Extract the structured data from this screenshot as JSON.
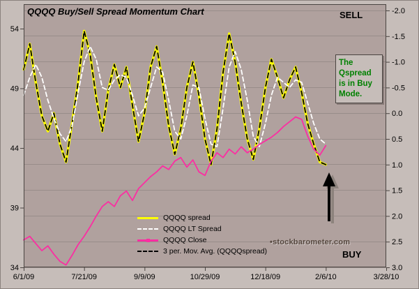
{
  "title": "QQQQ Buy/Sell Spread Momentum Chart",
  "mode_labels": {
    "sell": "SELL",
    "buy": "BUY"
  },
  "annotation": {
    "text": "The Qspread is in Buy Mode.",
    "color": "#008000"
  },
  "watermark": {
    "bullet": "•",
    "text": "stockbarometer.com"
  },
  "colors": {
    "page_bg": "#c6bdb9",
    "plot_bg": "#b0a19e",
    "grid": "#988d8a",
    "axis": "#4a4441",
    "spread": "#ffff00",
    "lt_spread": "#ffffff",
    "close": "#fb2ea2",
    "mov_avg": "#000000",
    "annotation_green": "#008000"
  },
  "chart_data": {
    "type": "line",
    "title": "QQQQ Buy/Sell Spread Momentum Chart",
    "grid": "horizontal",
    "legend_position": "inside-bottom-center",
    "x_axis": {
      "tick_labels": [
        "6/1/09",
        "7/21/09",
        "9/9/09",
        "10/29/09",
        "12/18/09",
        "2/6/10",
        "3/28/10"
      ],
      "tick_days": [
        0,
        50,
        100,
        150,
        200,
        250,
        300
      ],
      "range_days": [
        0,
        300
      ]
    },
    "left_axis": {
      "ticks": [
        54,
        49,
        44,
        39,
        34
      ],
      "range": [
        34,
        54
      ]
    },
    "right_axis": {
      "ticks": [
        -2.0,
        -1.5,
        -1.0,
        -0.5,
        0.0,
        0.5,
        1.0,
        1.5,
        2.0,
        2.5,
        3.0
      ],
      "range": [
        -2.0,
        3.0
      ],
      "inverted": true
    },
    "x_days": [
      0,
      5,
      10,
      15,
      20,
      25,
      30,
      35,
      40,
      45,
      50,
      55,
      60,
      65,
      70,
      75,
      80,
      85,
      90,
      95,
      100,
      105,
      110,
      115,
      120,
      125,
      130,
      135,
      140,
      145,
      150,
      155,
      160,
      165,
      170,
      175,
      180,
      185,
      190,
      195,
      200,
      205,
      210,
      215,
      220,
      225,
      230,
      235,
      240,
      245,
      250
    ],
    "draw_order": [
      0,
      3,
      1,
      2
    ],
    "series": [
      {
        "name": "QQQQ spread",
        "axis": "right",
        "color": "#ffff00",
        "width": 3.5,
        "dash": null,
        "marker": false,
        "values": [
          -0.85,
          -1.35,
          -0.6,
          0.05,
          0.35,
          0.0,
          0.6,
          0.95,
          0.2,
          -0.6,
          -1.6,
          -1.15,
          -0.3,
          0.35,
          -0.45,
          -0.95,
          -0.5,
          -0.9,
          -0.15,
          0.55,
          0.0,
          -0.9,
          -1.3,
          -0.6,
          0.25,
          0.8,
          0.3,
          -0.5,
          -1.0,
          -0.35,
          0.5,
          1.0,
          0.3,
          -0.8,
          -1.55,
          -1.0,
          -0.2,
          0.5,
          0.9,
          0.3,
          -0.5,
          -1.05,
          -0.7,
          -0.3,
          -0.65,
          -0.9,
          -0.4,
          0.2,
          0.6,
          0.95,
          1.0
        ]
      },
      {
        "name": "QQQQ LT Spread",
        "axis": "right",
        "color": "#ffffff",
        "width": 1.8,
        "dash": "6,4",
        "marker": false,
        "values": [
          -0.35,
          -0.7,
          -0.95,
          -0.7,
          -0.25,
          0.1,
          0.4,
          0.55,
          0.25,
          -0.4,
          -1.0,
          -1.3,
          -1.05,
          -0.5,
          -0.45,
          -0.65,
          -0.75,
          -0.7,
          -0.35,
          0.05,
          -0.1,
          -0.5,
          -0.9,
          -0.8,
          -0.25,
          0.35,
          0.5,
          0.05,
          -0.55,
          -0.5,
          0.1,
          0.6,
          0.65,
          -0.1,
          -0.9,
          -1.2,
          -0.85,
          -0.25,
          0.45,
          0.65,
          0.2,
          -0.35,
          -0.7,
          -0.6,
          -0.5,
          -0.65,
          -0.6,
          -0.2,
          0.2,
          0.5,
          0.6
        ]
      },
      {
        "name": "QQQQ Close",
        "axis": "left",
        "color": "#fb2ea2",
        "width": 1.8,
        "dash": null,
        "marker": true,
        "values": [
          36.3,
          36.6,
          36.0,
          35.4,
          35.8,
          35.1,
          34.5,
          34.2,
          35.0,
          35.9,
          36.6,
          37.4,
          38.3,
          39.1,
          39.5,
          39.1,
          40.0,
          40.4,
          39.6,
          40.6,
          41.1,
          41.6,
          42.0,
          42.5,
          42.2,
          42.9,
          43.2,
          42.4,
          43.0,
          42.0,
          41.7,
          42.9,
          43.6,
          43.2,
          43.9,
          43.5,
          44.1,
          43.6,
          43.9,
          44.3,
          44.6,
          44.9,
          45.3,
          45.8,
          46.2,
          46.6,
          46.4,
          45.0,
          43.9,
          43.4,
          44.2
        ]
      },
      {
        "name": "3 per. Mov. Avg. (QQQQspread)",
        "axis": "right",
        "color": "#000000",
        "width": 1.8,
        "dash": "7,5",
        "marker": false,
        "derived_from": "QQQQ spread",
        "period_label": 3,
        "smoothing_samples": 1
      }
    ]
  }
}
